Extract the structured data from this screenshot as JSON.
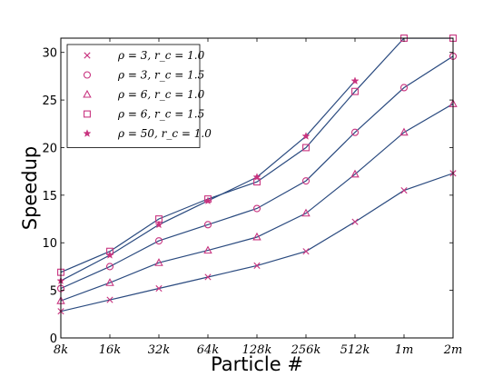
{
  "chart_data": {
    "type": "line",
    "xlabel": "Particle #",
    "ylabel": "Speedup",
    "categories": [
      "8k",
      "16k",
      "32k",
      "64k",
      "128k",
      "256k",
      "512k",
      "1m",
      "2m"
    ],
    "ylim": [
      0,
      31.5
    ],
    "yticks": [
      0,
      5,
      10,
      15,
      20,
      25,
      30
    ],
    "grid": false,
    "legend_position": "top-left",
    "line_color": "#2a4a7f",
    "marker_color": "#c8337f",
    "series": [
      {
        "name": "ρ = 3, r_c = 1.0",
        "marker": "x",
        "values": [
          2.8,
          4.0,
          5.2,
          6.4,
          7.6,
          9.1,
          12.2,
          15.5,
          17.3
        ]
      },
      {
        "name": "ρ = 3, r_c = 1.5",
        "marker": "circle",
        "values": [
          5.2,
          7.5,
          10.2,
          11.9,
          13.6,
          16.5,
          21.6,
          26.3,
          29.6
        ]
      },
      {
        "name": "ρ = 6, r_c = 1.0",
        "marker": "triangle",
        "values": [
          3.9,
          5.8,
          7.9,
          9.2,
          10.6,
          13.1,
          17.2,
          21.6,
          24.6
        ]
      },
      {
        "name": "ρ = 6, r_c = 1.5",
        "marker": "square",
        "values": [
          6.9,
          9.1,
          12.5,
          14.6,
          16.4,
          20.0,
          25.9,
          31.5,
          31.5
        ]
      },
      {
        "name": "ρ = 50, r_c = 1.0",
        "marker": "star",
        "values": [
          6.0,
          8.7,
          11.9,
          14.4,
          16.9,
          21.2,
          27.0,
          null,
          null
        ]
      }
    ]
  }
}
